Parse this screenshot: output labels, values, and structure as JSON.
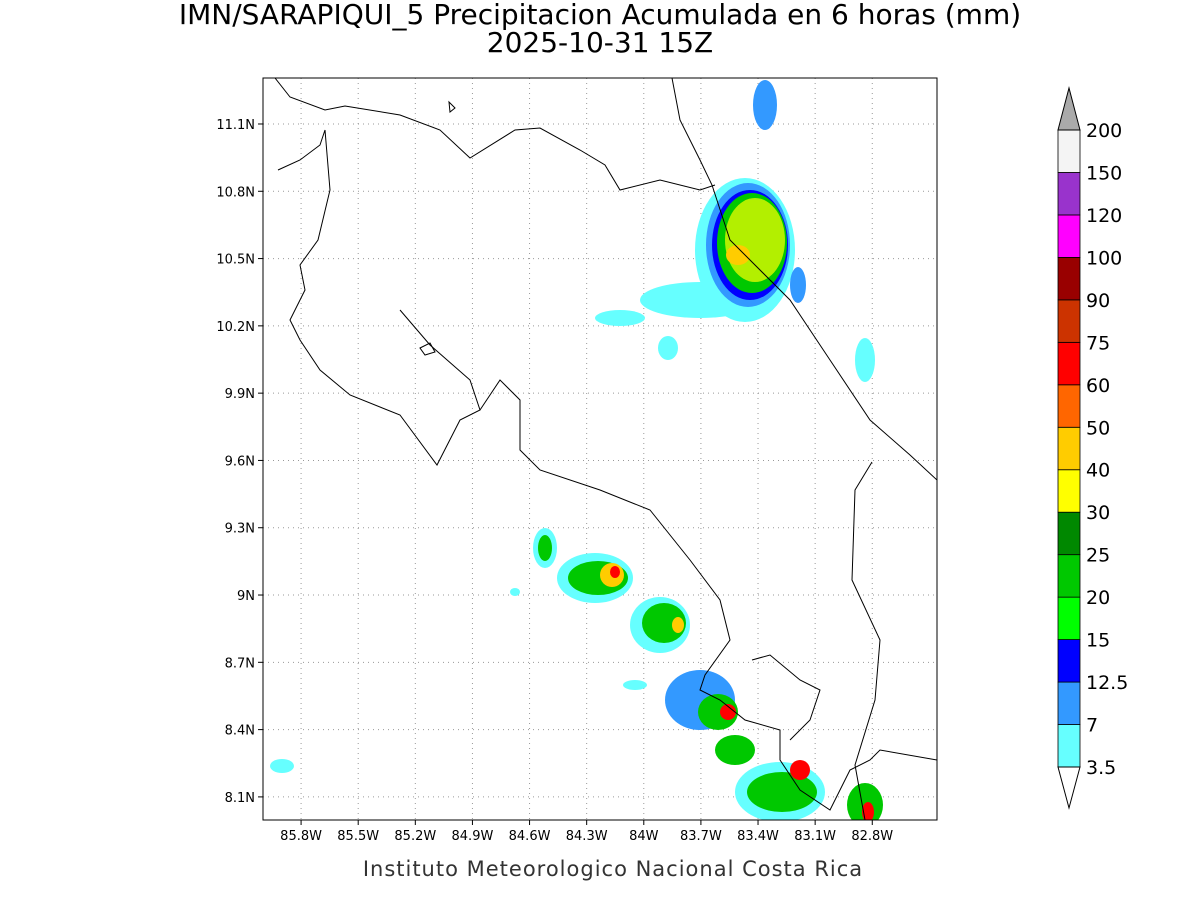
{
  "header": {
    "title": "IMN/SARAPIQUI_5 Precipitacion Acumulada en 6 horas (mm)",
    "subtitle": "2025-10-31 15Z"
  },
  "map": {
    "xlim": [
      -86.0,
      -82.46
    ],
    "ylim": [
      7.997,
      11.305
    ],
    "grid": true,
    "lon_ticks": [
      {
        "value": -85.8,
        "label": "85.8W"
      },
      {
        "value": -85.5,
        "label": "85.5W"
      },
      {
        "value": -85.2,
        "label": "85.2W"
      },
      {
        "value": -84.9,
        "label": "84.9W"
      },
      {
        "value": -84.6,
        "label": "84.6W"
      },
      {
        "value": -84.3,
        "label": "84.3W"
      },
      {
        "value": -84.0,
        "label": "84W"
      },
      {
        "value": -83.7,
        "label": "83.7W"
      },
      {
        "value": -83.4,
        "label": "83.4W"
      },
      {
        "value": -83.1,
        "label": "83.1W"
      },
      {
        "value": -82.8,
        "label": "82.8W"
      }
    ],
    "lat_ticks": [
      {
        "value": 8.1,
        "label": "8.1N"
      },
      {
        "value": 8.4,
        "label": "8.4N"
      },
      {
        "value": 8.7,
        "label": "8.7N"
      },
      {
        "value": 9.0,
        "label": "9N"
      },
      {
        "value": 9.3,
        "label": "9.3N"
      },
      {
        "value": 9.6,
        "label": "9.6N"
      },
      {
        "value": 9.9,
        "label": "9.9N"
      },
      {
        "value": 10.2,
        "label": "10.2N"
      },
      {
        "value": 10.5,
        "label": "10.5N"
      },
      {
        "value": 10.8,
        "label": "10.8N"
      },
      {
        "value": 11.1,
        "label": "11.1N"
      }
    ]
  },
  "colorbar": {
    "levels": [
      3.5,
      7,
      12.5,
      15,
      20,
      25,
      30,
      40,
      50,
      60,
      75,
      90,
      100,
      120,
      150,
      200
    ],
    "colors": [
      "#66ffff",
      "#3399ff",
      "#0000ff",
      "#00ff00",
      "#00c800",
      "#008800",
      "#ffff00",
      "#ffcc00",
      "#ff6600",
      "#ff0000",
      "#cc3300",
      "#990000",
      "#ff00ff",
      "#9933cc",
      "#f4f4f4"
    ],
    "under_color": "#ffffff",
    "over_color": "#aaaaaa"
  },
  "footer": {
    "text": "Instituto Meteorologico Nacional Costa Rica"
  }
}
